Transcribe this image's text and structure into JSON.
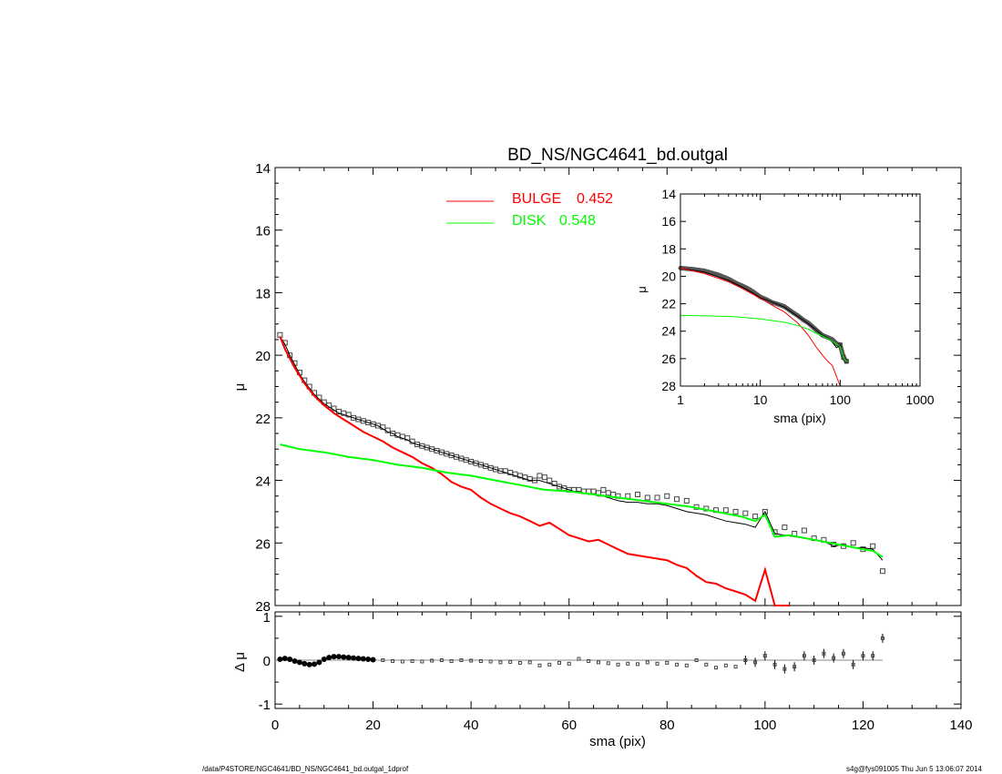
{
  "chart_data": [
    {
      "type": "line",
      "title": "BD_NS/NGC4641_bd.outgal",
      "xlabel": "",
      "ylabel": "μ",
      "xlim": [
        0,
        140
      ],
      "ylim": [
        28,
        14
      ],
      "y_inverted": true,
      "xticks": [
        "0",
        "20",
        "40",
        "60",
        "80",
        "100",
        "120",
        "140"
      ],
      "yticks": [
        "14",
        "16",
        "18",
        "20",
        "22",
        "24",
        "26",
        "28"
      ],
      "grid": false,
      "legend": {
        "placement": "top-center",
        "entries": [
          {
            "label": "BULGE",
            "value": "0.452",
            "color": "#ff0000"
          },
          {
            "label": "DISK",
            "value": "0.548",
            "color": "#00ff00"
          }
        ]
      },
      "series": [
        {
          "kind": "observed-points",
          "marker": "square",
          "color": "#000000",
          "x": [
            1,
            2,
            3,
            4,
            5,
            6,
            7,
            8,
            9,
            10,
            11,
            12,
            13,
            14,
            15,
            16,
            17,
            18,
            19,
            20,
            21,
            22,
            23,
            24,
            25,
            26,
            27,
            28,
            29,
            30,
            31,
            32,
            33,
            34,
            35,
            36,
            37,
            38,
            39,
            40,
            41,
            42,
            43,
            44,
            45,
            46,
            47,
            48,
            49,
            50,
            51,
            52,
            53,
            54,
            55,
            56,
            57,
            58,
            59,
            60,
            61,
            62,
            63,
            64,
            65,
            66,
            67,
            68,
            69,
            70,
            72,
            74,
            76,
            78,
            80,
            82,
            84,
            86,
            88,
            90,
            92,
            94,
            96,
            98,
            100,
            102,
            104,
            106,
            108,
            110,
            112,
            114,
            116,
            118,
            120,
            122,
            124
          ],
          "y": [
            19.35,
            19.6,
            20.0,
            20.25,
            20.55,
            20.8,
            21.0,
            21.2,
            21.35,
            21.5,
            21.6,
            21.7,
            21.8,
            21.85,
            21.9,
            22.0,
            22.05,
            22.1,
            22.15,
            22.2,
            22.25,
            22.3,
            22.4,
            22.5,
            22.55,
            22.6,
            22.65,
            22.75,
            22.85,
            22.9,
            22.95,
            23.0,
            23.05,
            23.1,
            23.15,
            23.2,
            23.25,
            23.3,
            23.35,
            23.4,
            23.45,
            23.5,
            23.55,
            23.6,
            23.65,
            23.7,
            23.7,
            23.75,
            23.8,
            23.85,
            23.9,
            23.95,
            24.0,
            23.85,
            23.9,
            24.0,
            24.1,
            24.2,
            24.25,
            24.3,
            24.3,
            24.3,
            24.35,
            24.35,
            24.35,
            24.4,
            24.3,
            24.4,
            24.45,
            24.5,
            24.5,
            24.45,
            24.55,
            24.55,
            24.5,
            24.6,
            24.65,
            24.85,
            24.9,
            24.95,
            24.95,
            25.0,
            25.05,
            25.15,
            25.0,
            25.65,
            25.5,
            25.7,
            25.6,
            25.85,
            25.9,
            26.05,
            26.1,
            26.0,
            26.2,
            26.1,
            26.9
          ]
        },
        {
          "kind": "model-total",
          "color": "#000000",
          "x": [
            1,
            2,
            3,
            4,
            5,
            6,
            7,
            8,
            9,
            10,
            11,
            12,
            13,
            14,
            15,
            16,
            17,
            18,
            19,
            20,
            21,
            22,
            23,
            24,
            25,
            26,
            27,
            28,
            29,
            30,
            31,
            32,
            33,
            34,
            35,
            36,
            37,
            38,
            39,
            40,
            41,
            42,
            43,
            44,
            45,
            46,
            47,
            48,
            49,
            50,
            51,
            52,
            53,
            54,
            55,
            56,
            57,
            58,
            59,
            60,
            61,
            62,
            63,
            64,
            65,
            66,
            67,
            68,
            69,
            70,
            72,
            74,
            76,
            78,
            80,
            82,
            84,
            86,
            88,
            90,
            92,
            94,
            96,
            98,
            100,
            102,
            104,
            106,
            108,
            110,
            112,
            114,
            116,
            118,
            120,
            122,
            124
          ],
          "y": [
            19.4,
            19.65,
            20.0,
            20.3,
            20.6,
            20.85,
            21.05,
            21.25,
            21.4,
            21.55,
            21.65,
            21.75,
            21.85,
            21.9,
            21.95,
            22.0,
            22.05,
            22.1,
            22.15,
            22.2,
            22.25,
            22.35,
            22.45,
            22.5,
            22.6,
            22.65,
            22.7,
            22.8,
            22.85,
            22.9,
            22.95,
            23.0,
            23.05,
            23.1,
            23.15,
            23.2,
            23.25,
            23.3,
            23.35,
            23.4,
            23.45,
            23.5,
            23.55,
            23.6,
            23.65,
            23.7,
            23.75,
            23.8,
            23.85,
            23.9,
            23.95,
            24.0,
            24.0,
            24.0,
            24.05,
            24.1,
            24.15,
            24.2,
            24.25,
            24.3,
            24.35,
            24.35,
            24.4,
            24.45,
            24.45,
            24.5,
            24.5,
            24.55,
            24.6,
            24.65,
            24.7,
            24.7,
            24.75,
            24.75,
            24.8,
            24.9,
            25.0,
            25.05,
            25.1,
            25.2,
            25.3,
            25.35,
            25.4,
            25.5,
            25.0,
            25.7,
            25.75,
            25.8,
            25.85,
            25.9,
            25.95,
            26.1,
            26.05,
            26.15,
            26.15,
            26.2,
            26.55
          ]
        },
        {
          "kind": "bulge",
          "name": "BULGE",
          "color": "#ff0000",
          "x": [
            1,
            2,
            4,
            6,
            8,
            10,
            12,
            14,
            16,
            18,
            20,
            22,
            24,
            26,
            28,
            30,
            32,
            34,
            36,
            38,
            40,
            42,
            44,
            46,
            48,
            50,
            52,
            54,
            56,
            58,
            60,
            62,
            64,
            66,
            68,
            70,
            72,
            74,
            76,
            78,
            80,
            82,
            84,
            86,
            88,
            90,
            92,
            94,
            96,
            98,
            100,
            102,
            105
          ],
          "y": [
            19.4,
            19.8,
            20.4,
            20.9,
            21.3,
            21.6,
            21.85,
            22.05,
            22.25,
            22.45,
            22.6,
            22.75,
            22.95,
            23.1,
            23.25,
            23.45,
            23.6,
            23.8,
            24.05,
            24.2,
            24.3,
            24.55,
            24.75,
            24.9,
            25.05,
            25.15,
            25.3,
            25.45,
            25.35,
            25.55,
            25.75,
            25.85,
            25.95,
            25.9,
            26.05,
            26.2,
            26.35,
            26.4,
            26.45,
            26.5,
            26.55,
            26.7,
            26.8,
            27.05,
            27.25,
            27.3,
            27.45,
            27.55,
            27.65,
            27.85,
            26.85,
            28.2,
            28.05
          ]
        },
        {
          "kind": "disk",
          "name": "DISK",
          "color": "#00ff00",
          "x": [
            1,
            5,
            10,
            15,
            20,
            25,
            30,
            35,
            40,
            45,
            50,
            55,
            60,
            65,
            70,
            75,
            80,
            85,
            90,
            95,
            98,
            100,
            102,
            105,
            110,
            115,
            120,
            122,
            124
          ],
          "y": [
            22.85,
            23.0,
            23.1,
            23.25,
            23.35,
            23.5,
            23.6,
            23.75,
            23.85,
            24.0,
            24.15,
            24.3,
            24.35,
            24.45,
            24.55,
            24.65,
            24.75,
            24.85,
            25.0,
            25.15,
            25.3,
            25.1,
            25.8,
            25.75,
            25.9,
            26.05,
            26.2,
            26.25,
            26.45
          ]
        }
      ]
    },
    {
      "type": "scatter",
      "title": "",
      "xlabel": "sma (pix)",
      "ylabel": "Δ μ",
      "xlim": [
        0,
        140
      ],
      "ylim": [
        -1.1,
        1.1
      ],
      "xticks": [
        "0",
        "20",
        "40",
        "60",
        "80",
        "100",
        "120",
        "140"
      ],
      "yticks": [
        "1",
        "0",
        "-1"
      ],
      "reference_line_y": 0,
      "series": [
        {
          "kind": "residuals",
          "marker": "square",
          "color": "#000000",
          "x": [
            1,
            2,
            3,
            4,
            5,
            6,
            7,
            8,
            9,
            10,
            11,
            12,
            13,
            14,
            15,
            16,
            17,
            18,
            19,
            20,
            22,
            24,
            26,
            28,
            30,
            32,
            34,
            36,
            38,
            40,
            42,
            44,
            46,
            48,
            50,
            52,
            54,
            56,
            58,
            60,
            62,
            64,
            66,
            68,
            70,
            72,
            74,
            76,
            78,
            80,
            82,
            84,
            86,
            88,
            90,
            92,
            94,
            96,
            98,
            100,
            102,
            104,
            106,
            108,
            110,
            112,
            114,
            116,
            118,
            120,
            122,
            124
          ],
          "y": [
            0.02,
            0.04,
            0.02,
            -0.02,
            -0.05,
            -0.08,
            -0.1,
            -0.09,
            -0.05,
            0.02,
            0.06,
            0.08,
            0.08,
            0.07,
            0.06,
            0.05,
            0.04,
            0.03,
            0.02,
            0.01,
            0.0,
            -0.02,
            -0.03,
            -0.02,
            -0.03,
            -0.01,
            0.0,
            -0.02,
            0.0,
            -0.01,
            -0.02,
            -0.03,
            -0.05,
            -0.04,
            -0.06,
            -0.05,
            -0.12,
            -0.1,
            -0.06,
            -0.08,
            0.03,
            -0.02,
            -0.05,
            -0.07,
            -0.1,
            -0.08,
            -0.09,
            -0.05,
            -0.08,
            -0.06,
            -0.1,
            -0.12,
            0.0,
            -0.1,
            -0.17,
            -0.12,
            -0.15,
            0.0,
            -0.05,
            0.1,
            -0.1,
            -0.2,
            -0.15,
            0.1,
            0.0,
            0.15,
            0.05,
            0.15,
            -0.1,
            0.1,
            0.1,
            0.5
          ]
        }
      ]
    },
    {
      "type": "line",
      "title": "",
      "xlabel": "sma (pix)",
      "ylabel": "μ",
      "xscale": "log",
      "xlim": [
        1,
        1000
      ],
      "ylim": [
        28,
        14
      ],
      "y_inverted": true,
      "xticks": [
        "1",
        "10",
        "100",
        "1000"
      ],
      "yticks": [
        "14",
        "16",
        "18",
        "20",
        "22",
        "24",
        "26",
        "28"
      ],
      "series": [
        {
          "kind": "observed-points",
          "marker": "square",
          "color": "#000000",
          "x": [
            1,
            1.5,
            2,
            3,
            4,
            5,
            6,
            7,
            8,
            10,
            12,
            14,
            16,
            18,
            20,
            25,
            30,
            35,
            40,
            50,
            60,
            70,
            80,
            90,
            100,
            110,
            120
          ],
          "y": [
            19.4,
            19.5,
            19.6,
            19.9,
            20.2,
            20.5,
            20.7,
            20.9,
            21.1,
            21.5,
            21.7,
            21.9,
            22.0,
            22.1,
            22.2,
            22.6,
            22.9,
            23.2,
            23.4,
            23.9,
            24.3,
            24.45,
            24.6,
            24.9,
            25.0,
            25.9,
            26.2
          ]
        },
        {
          "kind": "model-total",
          "color": "#000000",
          "x": [
            1,
            2,
            4,
            6,
            8,
            10,
            15,
            20,
            30,
            40,
            50,
            60,
            70,
            80,
            90,
            100,
            110,
            120
          ],
          "y": [
            19.4,
            19.7,
            20.3,
            20.8,
            21.2,
            21.55,
            21.95,
            22.25,
            22.95,
            23.45,
            23.9,
            24.3,
            24.5,
            24.8,
            25.2,
            25.0,
            25.9,
            26.3
          ]
        },
        {
          "kind": "bulge",
          "color": "#ff0000",
          "x": [
            1,
            2,
            4,
            6,
            8,
            10,
            15,
            20,
            30,
            40,
            50,
            60,
            70,
            80,
            90,
            100
          ],
          "y": [
            19.4,
            19.8,
            20.4,
            20.9,
            21.3,
            21.6,
            22.2,
            22.6,
            23.45,
            24.3,
            25.15,
            25.75,
            26.2,
            26.5,
            27.3,
            28.2
          ]
        },
        {
          "kind": "disk",
          "color": "#00ff00",
          "x": [
            1,
            2,
            5,
            10,
            15,
            20,
            30,
            40,
            50,
            60,
            70,
            80,
            90,
            100,
            110,
            120
          ],
          "y": [
            22.85,
            22.88,
            22.95,
            23.1,
            23.25,
            23.35,
            23.6,
            23.85,
            24.15,
            24.35,
            24.55,
            24.75,
            24.95,
            25.1,
            25.9,
            26.25
          ]
        }
      ]
    }
  ],
  "footer": {
    "left": "/data/P4STORE/NGC4641/BD_NS/NGC4641_bd.outgal_1dprof",
    "right": "s4g@fys091005  Thu Jun  5 13:06:07 2014"
  }
}
